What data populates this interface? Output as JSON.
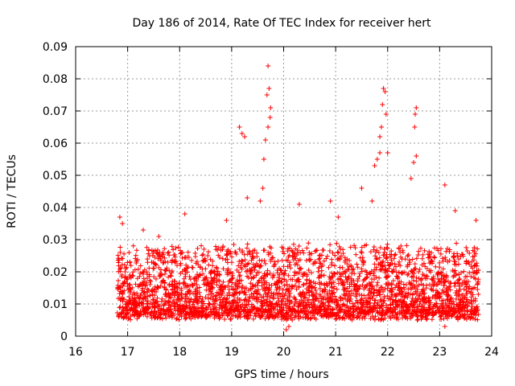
{
  "chart_data": {
    "type": "scatter",
    "title": "Day 186 of 2014, Rate Of TEC Index for receiver hert",
    "xlabel": "GPS time / hours",
    "ylabel": "ROTI / TECUs",
    "xlim": [
      16,
      24
    ],
    "ylim": [
      0,
      0.09
    ],
    "x_ticks": [
      "16",
      "17",
      "18",
      "19",
      "20",
      "21",
      "22",
      "23",
      "24"
    ],
    "y_ticks": [
      "0",
      "0.01",
      "0.02",
      "0.03",
      "0.04",
      "0.05",
      "0.06",
      "0.07",
      "0.08",
      "0.09"
    ],
    "grid": true,
    "marker": "+",
    "color": "#ff0000",
    "series": [
      {
        "name": "ROTI",
        "x_range": [
          16.8,
          23.75
        ],
        "typical_range": [
          0.005,
          0.03
        ],
        "notable_points": [
          [
            16.85,
            0.037
          ],
          [
            16.9,
            0.035
          ],
          [
            17.3,
            0.033
          ],
          [
            17.6,
            0.031
          ],
          [
            18.1,
            0.038
          ],
          [
            18.9,
            0.036
          ],
          [
            19.15,
            0.065
          ],
          [
            19.2,
            0.063
          ],
          [
            19.25,
            0.062
          ],
          [
            19.3,
            0.043
          ],
          [
            19.7,
            0.084
          ],
          [
            19.72,
            0.077
          ],
          [
            19.68,
            0.075
          ],
          [
            19.75,
            0.071
          ],
          [
            19.74,
            0.068
          ],
          [
            19.7,
            0.065
          ],
          [
            19.65,
            0.061
          ],
          [
            19.62,
            0.055
          ],
          [
            19.6,
            0.046
          ],
          [
            19.55,
            0.042
          ],
          [
            20.1,
            0.003
          ],
          [
            20.05,
            0.002
          ],
          [
            20.3,
            0.041
          ],
          [
            20.9,
            0.042
          ],
          [
            21.05,
            0.037
          ],
          [
            21.5,
            0.046
          ],
          [
            21.7,
            0.042
          ],
          [
            21.75,
            0.053
          ],
          [
            21.8,
            0.055
          ],
          [
            21.85,
            0.057
          ],
          [
            21.85,
            0.062
          ],
          [
            21.88,
            0.065
          ],
          [
            21.9,
            0.072
          ],
          [
            21.92,
            0.077
          ],
          [
            21.95,
            0.076
          ],
          [
            21.97,
            0.069
          ],
          [
            22.0,
            0.057
          ],
          [
            22.45,
            0.049
          ],
          [
            22.5,
            0.054
          ],
          [
            22.52,
            0.065
          ],
          [
            22.53,
            0.069
          ],
          [
            22.55,
            0.071
          ],
          [
            22.55,
            0.056
          ],
          [
            23.1,
            0.047
          ],
          [
            23.3,
            0.039
          ],
          [
            23.7,
            0.036
          ],
          [
            23.1,
            0.003
          ]
        ]
      }
    ]
  }
}
